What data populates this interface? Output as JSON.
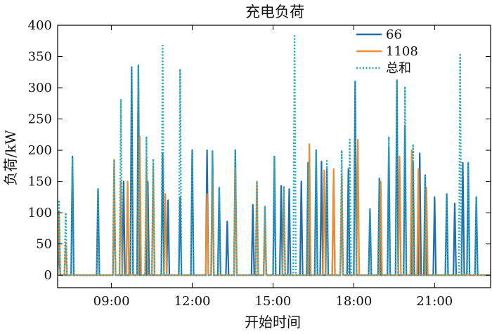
{
  "chart_data": {
    "type": "line",
    "title": "充电负荷",
    "xlabel": "开始时间",
    "ylabel": "负荷/kW",
    "x_range": [
      "07:00",
      "23:05"
    ],
    "xlim_hours": [
      7.0,
      23.08
    ],
    "ylim": [
      -20,
      400
    ],
    "yticks": [
      0,
      50,
      100,
      150,
      200,
      250,
      300,
      350,
      400
    ],
    "xtick_hours": [
      9,
      12,
      15,
      18,
      21
    ],
    "xtick_labels": [
      "09:00",
      "12:00",
      "15:00",
      "18:00",
      "21:00"
    ],
    "legend_position": "top-right",
    "grid": false,
    "series": [
      {
        "name": "66",
        "color": "#1f6fb0",
        "style": "solid",
        "peaks": [
          [
            7.05,
            40
          ],
          [
            7.55,
            190
          ],
          [
            8.5,
            138
          ],
          [
            9.1,
            113
          ],
          [
            9.45,
            150
          ],
          [
            9.75,
            333
          ],
          [
            10.0,
            336
          ],
          [
            10.35,
            150
          ],
          [
            10.9,
            195
          ],
          [
            11.1,
            120
          ],
          [
            11.55,
            125
          ],
          [
            12.0,
            200
          ],
          [
            12.55,
            200
          ],
          [
            12.75,
            198
          ],
          [
            13.0,
            140
          ],
          [
            13.3,
            86
          ],
          [
            13.6,
            200
          ],
          [
            14.25,
            113
          ],
          [
            14.7,
            95
          ],
          [
            15.05,
            190
          ],
          [
            15.3,
            143
          ],
          [
            15.6,
            138
          ],
          [
            16.05,
            150
          ],
          [
            16.3,
            180
          ],
          [
            16.6,
            200
          ],
          [
            16.8,
            182
          ],
          [
            17.0,
            170
          ],
          [
            17.25,
            155
          ],
          [
            17.55,
            120
          ],
          [
            17.8,
            170
          ],
          [
            18.05,
            310
          ],
          [
            18.6,
            106
          ],
          [
            18.95,
            155
          ],
          [
            19.3,
            205
          ],
          [
            19.6,
            312
          ],
          [
            19.9,
            240
          ],
          [
            20.2,
            180
          ],
          [
            20.45,
            195
          ],
          [
            20.65,
            160
          ],
          [
            21.0,
            125
          ],
          [
            21.45,
            130
          ],
          [
            21.75,
            115
          ],
          [
            22.05,
            180
          ],
          [
            22.25,
            180
          ],
          [
            22.55,
            125
          ]
        ]
      },
      {
        "name": "1108",
        "color": "#f28a2e",
        "style": "solid",
        "peaks": [
          [
            7.05,
            100
          ],
          [
            7.3,
            50
          ],
          [
            9.1,
            185
          ],
          [
            9.35,
            150
          ],
          [
            9.6,
            150
          ],
          [
            10.05,
            222
          ],
          [
            10.3,
            186
          ],
          [
            10.55,
            175
          ],
          [
            11.0,
            130
          ],
          [
            12.55,
            130
          ],
          [
            12.75,
            160
          ],
          [
            13.6,
            170
          ],
          [
            14.4,
            150
          ],
          [
            14.7,
            110
          ],
          [
            15.4,
            140
          ],
          [
            16.35,
            210
          ],
          [
            16.9,
            168
          ],
          [
            17.25,
            170
          ],
          [
            17.55,
            160
          ],
          [
            18.15,
            217
          ],
          [
            19.0,
            150
          ],
          [
            19.7,
            190
          ],
          [
            20.15,
            200
          ],
          [
            20.4,
            170
          ],
          [
            20.7,
            140
          ]
        ]
      },
      {
        "name": "总和",
        "color": "#2aa7b8",
        "style": "dotted",
        "peaks": [
          [
            7.05,
            120
          ],
          [
            7.3,
            100
          ],
          [
            7.55,
            188
          ],
          [
            8.5,
            138
          ],
          [
            9.1,
            185
          ],
          [
            9.35,
            282
          ],
          [
            9.75,
            333
          ],
          [
            10.0,
            336
          ],
          [
            10.3,
            222
          ],
          [
            10.55,
            186
          ],
          [
            10.9,
            370
          ],
          [
            11.55,
            330
          ],
          [
            12.0,
            200
          ],
          [
            12.75,
            200
          ],
          [
            13.0,
            140
          ],
          [
            13.6,
            200
          ],
          [
            14.4,
            150
          ],
          [
            14.7,
            110
          ],
          [
            15.05,
            190
          ],
          [
            15.4,
            143
          ],
          [
            15.8,
            383
          ],
          [
            16.3,
            180
          ],
          [
            16.6,
            200
          ],
          [
            17.0,
            183
          ],
          [
            17.55,
            200
          ],
          [
            17.85,
            217
          ],
          [
            18.05,
            310
          ],
          [
            18.6,
            106
          ],
          [
            18.95,
            155
          ],
          [
            19.3,
            222
          ],
          [
            19.6,
            312
          ],
          [
            19.9,
            302
          ],
          [
            20.2,
            210
          ],
          [
            20.65,
            160
          ],
          [
            21.45,
            130
          ],
          [
            21.95,
            353
          ],
          [
            22.25,
            180
          ],
          [
            22.55,
            125
          ]
        ]
      }
    ]
  }
}
